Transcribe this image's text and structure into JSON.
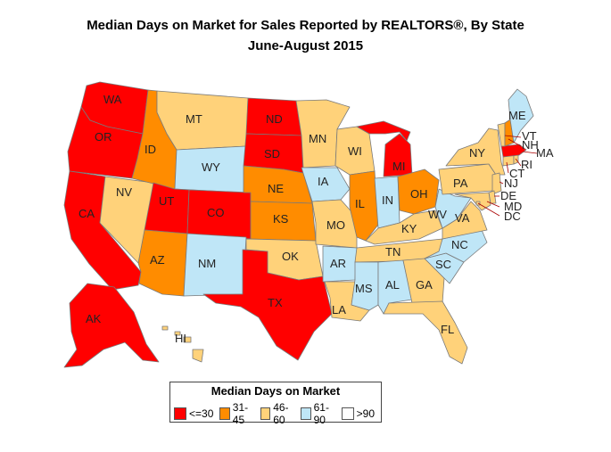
{
  "title": "Median Days on Market for Sales Reported by REALTORS®, By State",
  "subtitle": "June-August 2015",
  "colors": {
    "le30": "#ff0000",
    "r31_45": "#ff8c00",
    "r46_60": "#ffd27a",
    "r61_90": "#bfe6f7",
    "gt90": "#ffffff"
  },
  "legend": {
    "title": "Median Days on Market",
    "items": [
      {
        "key": "le30",
        "label": "<=30"
      },
      {
        "key": "r31_45",
        "label": "31-45"
      },
      {
        "key": "r46_60",
        "label": "46-60"
      },
      {
        "key": "r61_90",
        "label": "61-90"
      },
      {
        "key": "gt90",
        "label": ">90"
      }
    ]
  },
  "states": {
    "WA": "le30",
    "OR": "le30",
    "CA": "le30",
    "NV": "r46_60",
    "ID": "r31_45",
    "MT": "r46_60",
    "WY": "r61_90",
    "UT": "le30",
    "CO": "le30",
    "AZ": "r31_45",
    "NM": "r61_90",
    "ND": "le30",
    "SD": "le30",
    "NE": "r31_45",
    "KS": "r31_45",
    "OK": "r46_60",
    "TX": "le30",
    "MN": "r46_60",
    "IA": "r61_90",
    "MO": "r46_60",
    "AR": "r61_90",
    "LA": "r46_60",
    "WI": "r46_60",
    "IL": "r31_45",
    "MI": "le30",
    "IN": "r61_90",
    "OH": "r31_45",
    "KY": "r46_60",
    "TN": "r46_60",
    "MS": "r61_90",
    "AL": "r61_90",
    "GA": "r46_60",
    "FL": "r46_60",
    "SC": "r61_90",
    "NC": "r61_90",
    "VA": "r46_60",
    "WV": "r61_90",
    "PA": "r46_60",
    "NY": "r46_60",
    "ME": "r61_90",
    "VT": "r46_60",
    "NH": "r31_45",
    "MA": "le30",
    "RI": "r46_60",
    "CT": "r46_60",
    "NJ": "r46_60",
    "DE": "r46_60",
    "MD": "r46_60",
    "DC": "r46_60",
    "AK": "le30",
    "HI": "r46_60"
  },
  "labels": {
    "WA": "WA",
    "OR": "OR",
    "CA": "CA",
    "NV": "NV",
    "ID": "ID",
    "MT": "MT",
    "WY": "WY",
    "UT": "UT",
    "CO": "CO",
    "AZ": "AZ",
    "NM": "NM",
    "ND": "ND",
    "SD": "SD",
    "NE": "NE",
    "KS": "KS",
    "OK": "OK",
    "TX": "TX",
    "MN": "MN",
    "IA": "IA",
    "MO": "MO",
    "AR": "AR",
    "LA": "LA",
    "WI": "WI",
    "IL": "IL",
    "MI": "MI",
    "IN": "IN",
    "OH": "OH",
    "KY": "KY",
    "TN": "TN",
    "MS": "MS",
    "AL": "AL",
    "GA": "GA",
    "FL": "FL",
    "SC": "SC",
    "NC": "NC",
    "VA": "VA",
    "WV": "WV",
    "PA": "PA",
    "NY": "NY",
    "ME": "ME",
    "VT": "VT",
    "NH": "NH",
    "MA": "MA",
    "RI": "RI",
    "CT": "CT",
    "NJ": "NJ",
    "DE": "DE",
    "MD": "MD",
    "DC": "DC",
    "AK": "AK",
    "HI": "HI"
  }
}
